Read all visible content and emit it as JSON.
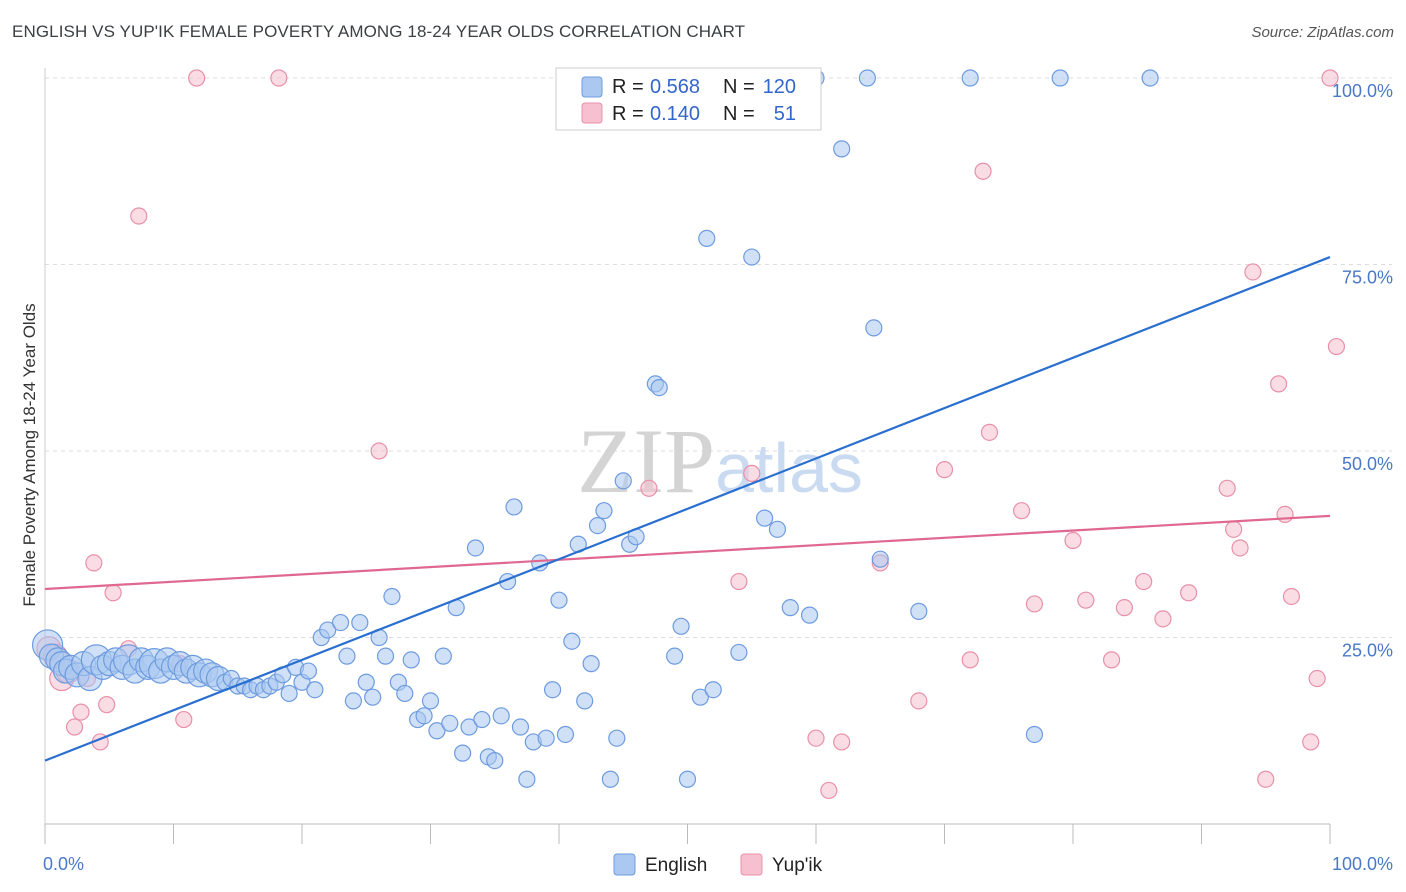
{
  "title": "ENGLISH VS YUP'IK FEMALE POVERTY AMONG 18-24 YEAR OLDS CORRELATION CHART",
  "source": "Source: ZipAtlas.com",
  "watermark": "ZIPatlas",
  "colors": {
    "english_fill": "#aac8f0",
    "english_stroke": "#6d9be0",
    "english_line": "#2a6fd0",
    "yupik_fill": "#f6c0d0",
    "yupik_stroke": "#e890aa",
    "yupik_line": "#e06890",
    "axis_label": "#4a78c8",
    "grid": "#dddddd"
  },
  "legend": {
    "r_label": "R =",
    "n_label": "N =",
    "rows": [
      {
        "series": "English",
        "r": "0.568",
        "n": "120"
      },
      {
        "series": "Yup'ik",
        "r": "0.140",
        "n": "51"
      }
    ]
  },
  "chart_data": {
    "type": "scatter",
    "title": "ENGLISH VS YUP'IK FEMALE POVERTY AMONG 18-24 YEAR OLDS CORRELATION CHART",
    "xlabel": "",
    "ylabel": "Female Poverty Among 18-24 Year Olds",
    "xlim": [
      0,
      100
    ],
    "ylim": [
      0,
      100
    ],
    "x_tick_labels": [
      "0.0%",
      "100.0%"
    ],
    "y_tick_labels": [
      "25.0%",
      "50.0%",
      "75.0%",
      "100.0%"
    ],
    "y_ticks": [
      25,
      50,
      75,
      100
    ],
    "legend_position": "top-center",
    "grid": true,
    "series": [
      {
        "name": "English",
        "trend": {
          "x0": 0,
          "y0": 8.5,
          "x1": 100,
          "y1": 76
        },
        "points": [
          [
            0.2,
            24,
            3
          ],
          [
            0.5,
            22.5,
            2
          ],
          [
            1,
            22,
            2
          ],
          [
            1.3,
            21.5,
            2
          ],
          [
            1.6,
            20.5,
            2
          ],
          [
            2,
            21,
            2
          ],
          [
            2.5,
            20,
            2
          ],
          [
            3,
            21.5,
            2
          ],
          [
            3.5,
            19.5,
            2
          ],
          [
            4,
            22,
            3
          ],
          [
            4.5,
            21,
            2
          ],
          [
            5,
            21.5,
            2
          ],
          [
            5.5,
            22,
            2
          ],
          [
            6,
            21,
            2
          ],
          [
            6.5,
            22,
            3
          ],
          [
            7,
            20.5,
            2
          ],
          [
            7.5,
            22,
            2
          ],
          [
            8,
            21,
            2
          ],
          [
            8.5,
            21.5,
            3
          ],
          [
            9,
            20.5,
            2
          ],
          [
            9.5,
            22,
            2
          ],
          [
            10,
            21,
            2
          ],
          [
            10.5,
            21.5,
            2
          ],
          [
            11,
            20.5,
            2
          ],
          [
            11.5,
            21,
            2
          ],
          [
            12,
            20,
            2
          ],
          [
            12.5,
            20.5,
            2
          ],
          [
            13,
            20,
            2
          ],
          [
            13.5,
            19.5,
            2
          ],
          [
            14,
            19,
            1
          ],
          [
            14.5,
            19.5,
            1
          ],
          [
            15,
            18.5,
            1
          ],
          [
            15.5,
            18.5,
            1
          ],
          [
            16,
            18,
            1
          ],
          [
            16.5,
            18.5,
            1
          ],
          [
            17,
            18,
            1
          ],
          [
            17.5,
            18.5,
            1
          ],
          [
            18,
            19,
            1
          ],
          [
            18.5,
            20,
            1
          ],
          [
            19,
            17.5,
            1
          ],
          [
            19.5,
            21,
            1
          ],
          [
            20,
            19,
            1
          ],
          [
            20.5,
            20.5,
            1
          ],
          [
            21,
            18,
            1
          ],
          [
            21.5,
            25,
            1
          ],
          [
            22,
            26,
            1
          ],
          [
            23,
            27,
            1
          ],
          [
            23.5,
            22.5,
            1
          ],
          [
            24,
            16.5,
            1
          ],
          [
            24.5,
            27,
            1
          ],
          [
            25,
            19,
            1
          ],
          [
            25.5,
            17,
            1
          ],
          [
            26,
            25,
            1
          ],
          [
            26.5,
            22.5,
            1
          ],
          [
            27,
            30.5,
            1
          ],
          [
            27.5,
            19,
            1
          ],
          [
            28,
            17.5,
            1
          ],
          [
            28.5,
            22,
            1
          ],
          [
            29,
            14,
            1
          ],
          [
            29.5,
            14.5,
            1
          ],
          [
            30,
            16.5,
            1
          ],
          [
            30.5,
            12.5,
            1
          ],
          [
            31,
            22.5,
            1
          ],
          [
            31.5,
            13.5,
            1
          ],
          [
            32,
            29,
            1
          ],
          [
            32.5,
            9.5,
            1
          ],
          [
            33,
            13,
            1
          ],
          [
            33.5,
            37,
            1
          ],
          [
            34,
            14,
            1
          ],
          [
            34.5,
            9,
            1
          ],
          [
            35,
            8.5,
            1
          ],
          [
            35.5,
            14.5,
            1
          ],
          [
            36,
            32.5,
            1
          ],
          [
            36.5,
            42.5,
            1
          ],
          [
            37,
            13,
            1
          ],
          [
            37.5,
            6,
            1
          ],
          [
            38,
            11,
            1
          ],
          [
            38.5,
            35,
            1
          ],
          [
            39,
            11.5,
            1
          ],
          [
            39.5,
            18,
            1
          ],
          [
            40,
            30,
            1
          ],
          [
            40.5,
            12,
            1
          ],
          [
            41,
            24.5,
            1
          ],
          [
            41.5,
            37.5,
            1
          ],
          [
            42,
            16.5,
            1
          ],
          [
            42.5,
            21.5,
            1
          ],
          [
            43,
            40,
            1
          ],
          [
            43.5,
            42,
            1
          ],
          [
            44,
            6,
            1
          ],
          [
            44.5,
            11.5,
            1
          ],
          [
            45,
            46,
            1
          ],
          [
            45.5,
            37.5,
            1
          ],
          [
            46,
            38.5,
            1
          ],
          [
            47.5,
            59,
            1
          ],
          [
            47.8,
            58.5,
            1
          ],
          [
            49,
            22.5,
            1
          ],
          [
            49.5,
            26.5,
            1
          ],
          [
            50,
            6,
            1
          ],
          [
            51,
            17,
            1
          ],
          [
            51.5,
            78.5,
            1
          ],
          [
            52,
            18,
            1
          ],
          [
            52.5,
            100,
            1
          ],
          [
            53,
            100,
            1
          ],
          [
            54,
            23,
            1
          ],
          [
            55,
            76,
            1
          ],
          [
            56,
            41,
            1
          ],
          [
            57,
            39.5,
            1
          ],
          [
            58,
            29,
            1
          ],
          [
            59.5,
            28,
            1
          ],
          [
            60,
            100,
            1
          ],
          [
            62,
            90.5,
            1
          ],
          [
            64,
            100,
            1
          ],
          [
            64.5,
            66.5,
            1
          ],
          [
            65,
            35.5,
            1
          ],
          [
            68,
            28.5,
            1
          ],
          [
            72,
            100,
            1
          ],
          [
            77,
            12,
            1
          ],
          [
            79,
            100,
            1
          ],
          [
            86,
            100,
            1
          ]
        ]
      },
      {
        "name": "Yup'ik",
        "trend": {
          "x0": 0,
          "y0": 31.5,
          "x1": 100,
          "y1": 41.3
        },
        "points": [
          [
            0.3,
            23.5,
            2
          ],
          [
            0.8,
            22.5,
            2
          ],
          [
            1.3,
            19.5,
            2
          ],
          [
            1.8,
            20.5,
            2
          ],
          [
            2.3,
            13,
            1
          ],
          [
            2.8,
            15,
            1
          ],
          [
            3.3,
            19.5,
            1
          ],
          [
            3.8,
            35,
            1
          ],
          [
            4.3,
            11,
            1
          ],
          [
            4.8,
            16,
            1
          ],
          [
            5.3,
            31,
            1
          ],
          [
            6.5,
            23.5,
            1
          ],
          [
            7.3,
            81.5,
            1
          ],
          [
            10.5,
            21.5,
            1
          ],
          [
            10.8,
            14,
            1
          ],
          [
            11.8,
            100,
            1
          ],
          [
            18.2,
            100,
            1
          ],
          [
            26,
            50,
            1
          ],
          [
            47,
            45,
            1
          ],
          [
            54,
            32.5,
            1
          ],
          [
            55,
            47,
            1
          ],
          [
            60,
            11.5,
            1
          ],
          [
            61,
            4.5,
            1
          ],
          [
            62,
            11,
            1
          ],
          [
            65,
            35,
            1
          ],
          [
            68,
            16.5,
            1
          ],
          [
            70,
            47.5,
            1
          ],
          [
            72,
            22,
            1
          ],
          [
            73,
            87.5,
            1
          ],
          [
            73.5,
            52.5,
            1
          ],
          [
            76,
            42,
            1
          ],
          [
            77,
            29.5,
            1
          ],
          [
            80,
            38,
            1
          ],
          [
            81,
            30,
            1
          ],
          [
            83,
            22,
            1
          ],
          [
            84,
            29,
            1
          ],
          [
            85.5,
            32.5,
            1
          ],
          [
            87,
            27.5,
            1
          ],
          [
            89,
            31,
            1
          ],
          [
            92,
            45,
            1
          ],
          [
            92.5,
            39.5,
            1
          ],
          [
            93,
            37,
            1
          ],
          [
            94,
            74,
            1
          ],
          [
            95,
            6,
            1
          ],
          [
            96,
            59,
            1
          ],
          [
            96.5,
            41.5,
            1
          ],
          [
            97,
            30.5,
            1
          ],
          [
            98.5,
            11,
            1
          ],
          [
            99,
            19.5,
            1
          ],
          [
            100,
            100,
            1
          ],
          [
            100.5,
            64,
            1
          ]
        ]
      }
    ]
  }
}
